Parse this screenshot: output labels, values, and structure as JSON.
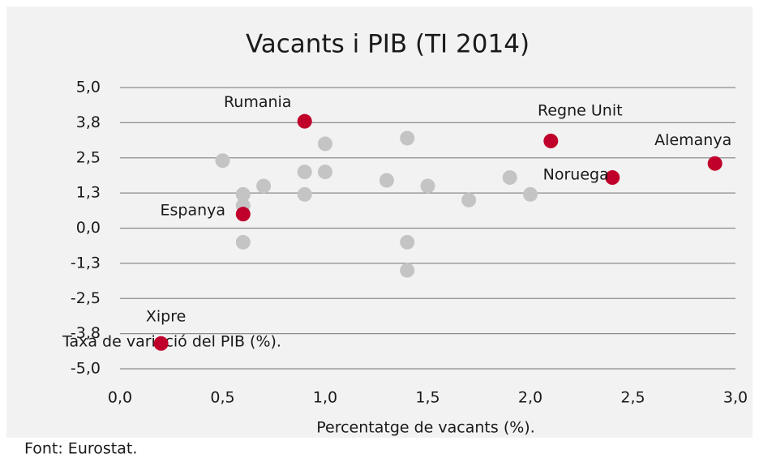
{
  "chart_data": {
    "type": "scatter",
    "title": "Vacants i PIB (TI 2014)",
    "xlabel": "Percentatge de vacants (%).",
    "ylabel": "Taxa de variació del PIB (%).",
    "source": "Font: Eurostat.",
    "xlim": [
      0,
      3
    ],
    "xticks": [
      {
        "value": 0,
        "label": "0,0"
      },
      {
        "value": 0.5,
        "label": "0,5"
      },
      {
        "value": 1,
        "label": "1,0"
      },
      {
        "value": 1.5,
        "label": "1,5"
      },
      {
        "value": 2,
        "label": "2,0"
      },
      {
        "value": 2.5,
        "label": "2,5"
      },
      {
        "value": 3,
        "label": "3,0"
      }
    ],
    "ylim": [
      -5,
      5
    ],
    "yticks": [
      {
        "value": 5,
        "label": "5,0"
      },
      {
        "value": 3.75,
        "label": "3,8"
      },
      {
        "value": 2.5,
        "label": "2,5"
      },
      {
        "value": 1.25,
        "label": "1,3"
      },
      {
        "value": 0,
        "label": "0,0"
      },
      {
        "value": -1.25,
        "label": "-1,3"
      },
      {
        "value": -2.5,
        "label": "-2,5"
      },
      {
        "value": -3.75,
        "label": "-3,8"
      },
      {
        "value": -5,
        "label": "-5,0"
      }
    ],
    "grid": true,
    "series": [
      {
        "color": "#c4c4c4",
        "x": [
          0.5,
          0.6,
          0.6,
          0.6,
          0.7,
          0.9,
          0.9,
          1.0,
          1.0,
          1.3,
          1.4,
          1.4,
          1.4,
          1.5,
          1.7,
          1.9,
          2.0
        ],
        "values": [
          2.4,
          1.2,
          0.8,
          -0.5,
          1.5,
          2.0,
          1.2,
          3.0,
          2.0,
          1.7,
          3.2,
          -0.5,
          -1.5,
          1.5,
          1.0,
          1.8,
          1.2
        ]
      },
      {
        "color": "#c0002a",
        "x": [
          0.9,
          2.1,
          2.9,
          2.4,
          0.6,
          0.2
        ],
        "values": [
          3.8,
          3.1,
          2.3,
          1.8,
          0.5,
          -4.1
        ],
        "labels": [
          "Rumania",
          "Regne Unit",
          "Alemanya",
          "Noruega",
          "Espanya",
          "Xipre"
        ]
      }
    ]
  }
}
